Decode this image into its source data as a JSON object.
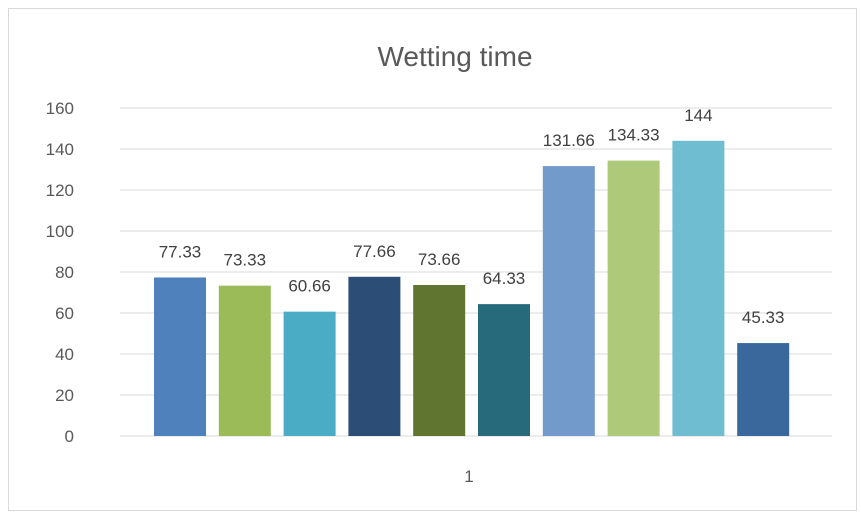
{
  "chart_data": {
    "type": "bar",
    "title": "Wetting time",
    "xlabel": "",
    "ylabel": "",
    "categories": [
      "1"
    ],
    "ylim": [
      0,
      160
    ],
    "yticks": [
      0,
      20,
      40,
      60,
      80,
      100,
      120,
      140,
      160
    ],
    "grid": true,
    "legend": "none",
    "series": [
      {
        "values": [
          77.33
        ],
        "data_label": "77.33",
        "color": "#4f81bd"
      },
      {
        "values": [
          73.33
        ],
        "data_label": "73.33",
        "color": "#9bbb59"
      },
      {
        "values": [
          60.66
        ],
        "data_label": "60.66",
        "color": "#4bacc6"
      },
      {
        "values": [
          77.66
        ],
        "data_label": "77.66",
        "color": "#2c4d75"
      },
      {
        "values": [
          73.66
        ],
        "data_label": "73.66",
        "color": "#5f7530"
      },
      {
        "values": [
          64.33
        ],
        "data_label": "64.33",
        "color": "#276a7c"
      },
      {
        "values": [
          131.66
        ],
        "data_label": "131.66",
        "color": "#729aca"
      },
      {
        "values": [
          134.33
        ],
        "data_label": "134.33",
        "color": "#afc97a"
      },
      {
        "values": [
          144
        ],
        "data_label": "144",
        "color": "#6fbdd1"
      },
      {
        "values": [
          45.33
        ],
        "data_label": "45.33",
        "color": "#3a679c"
      }
    ]
  }
}
